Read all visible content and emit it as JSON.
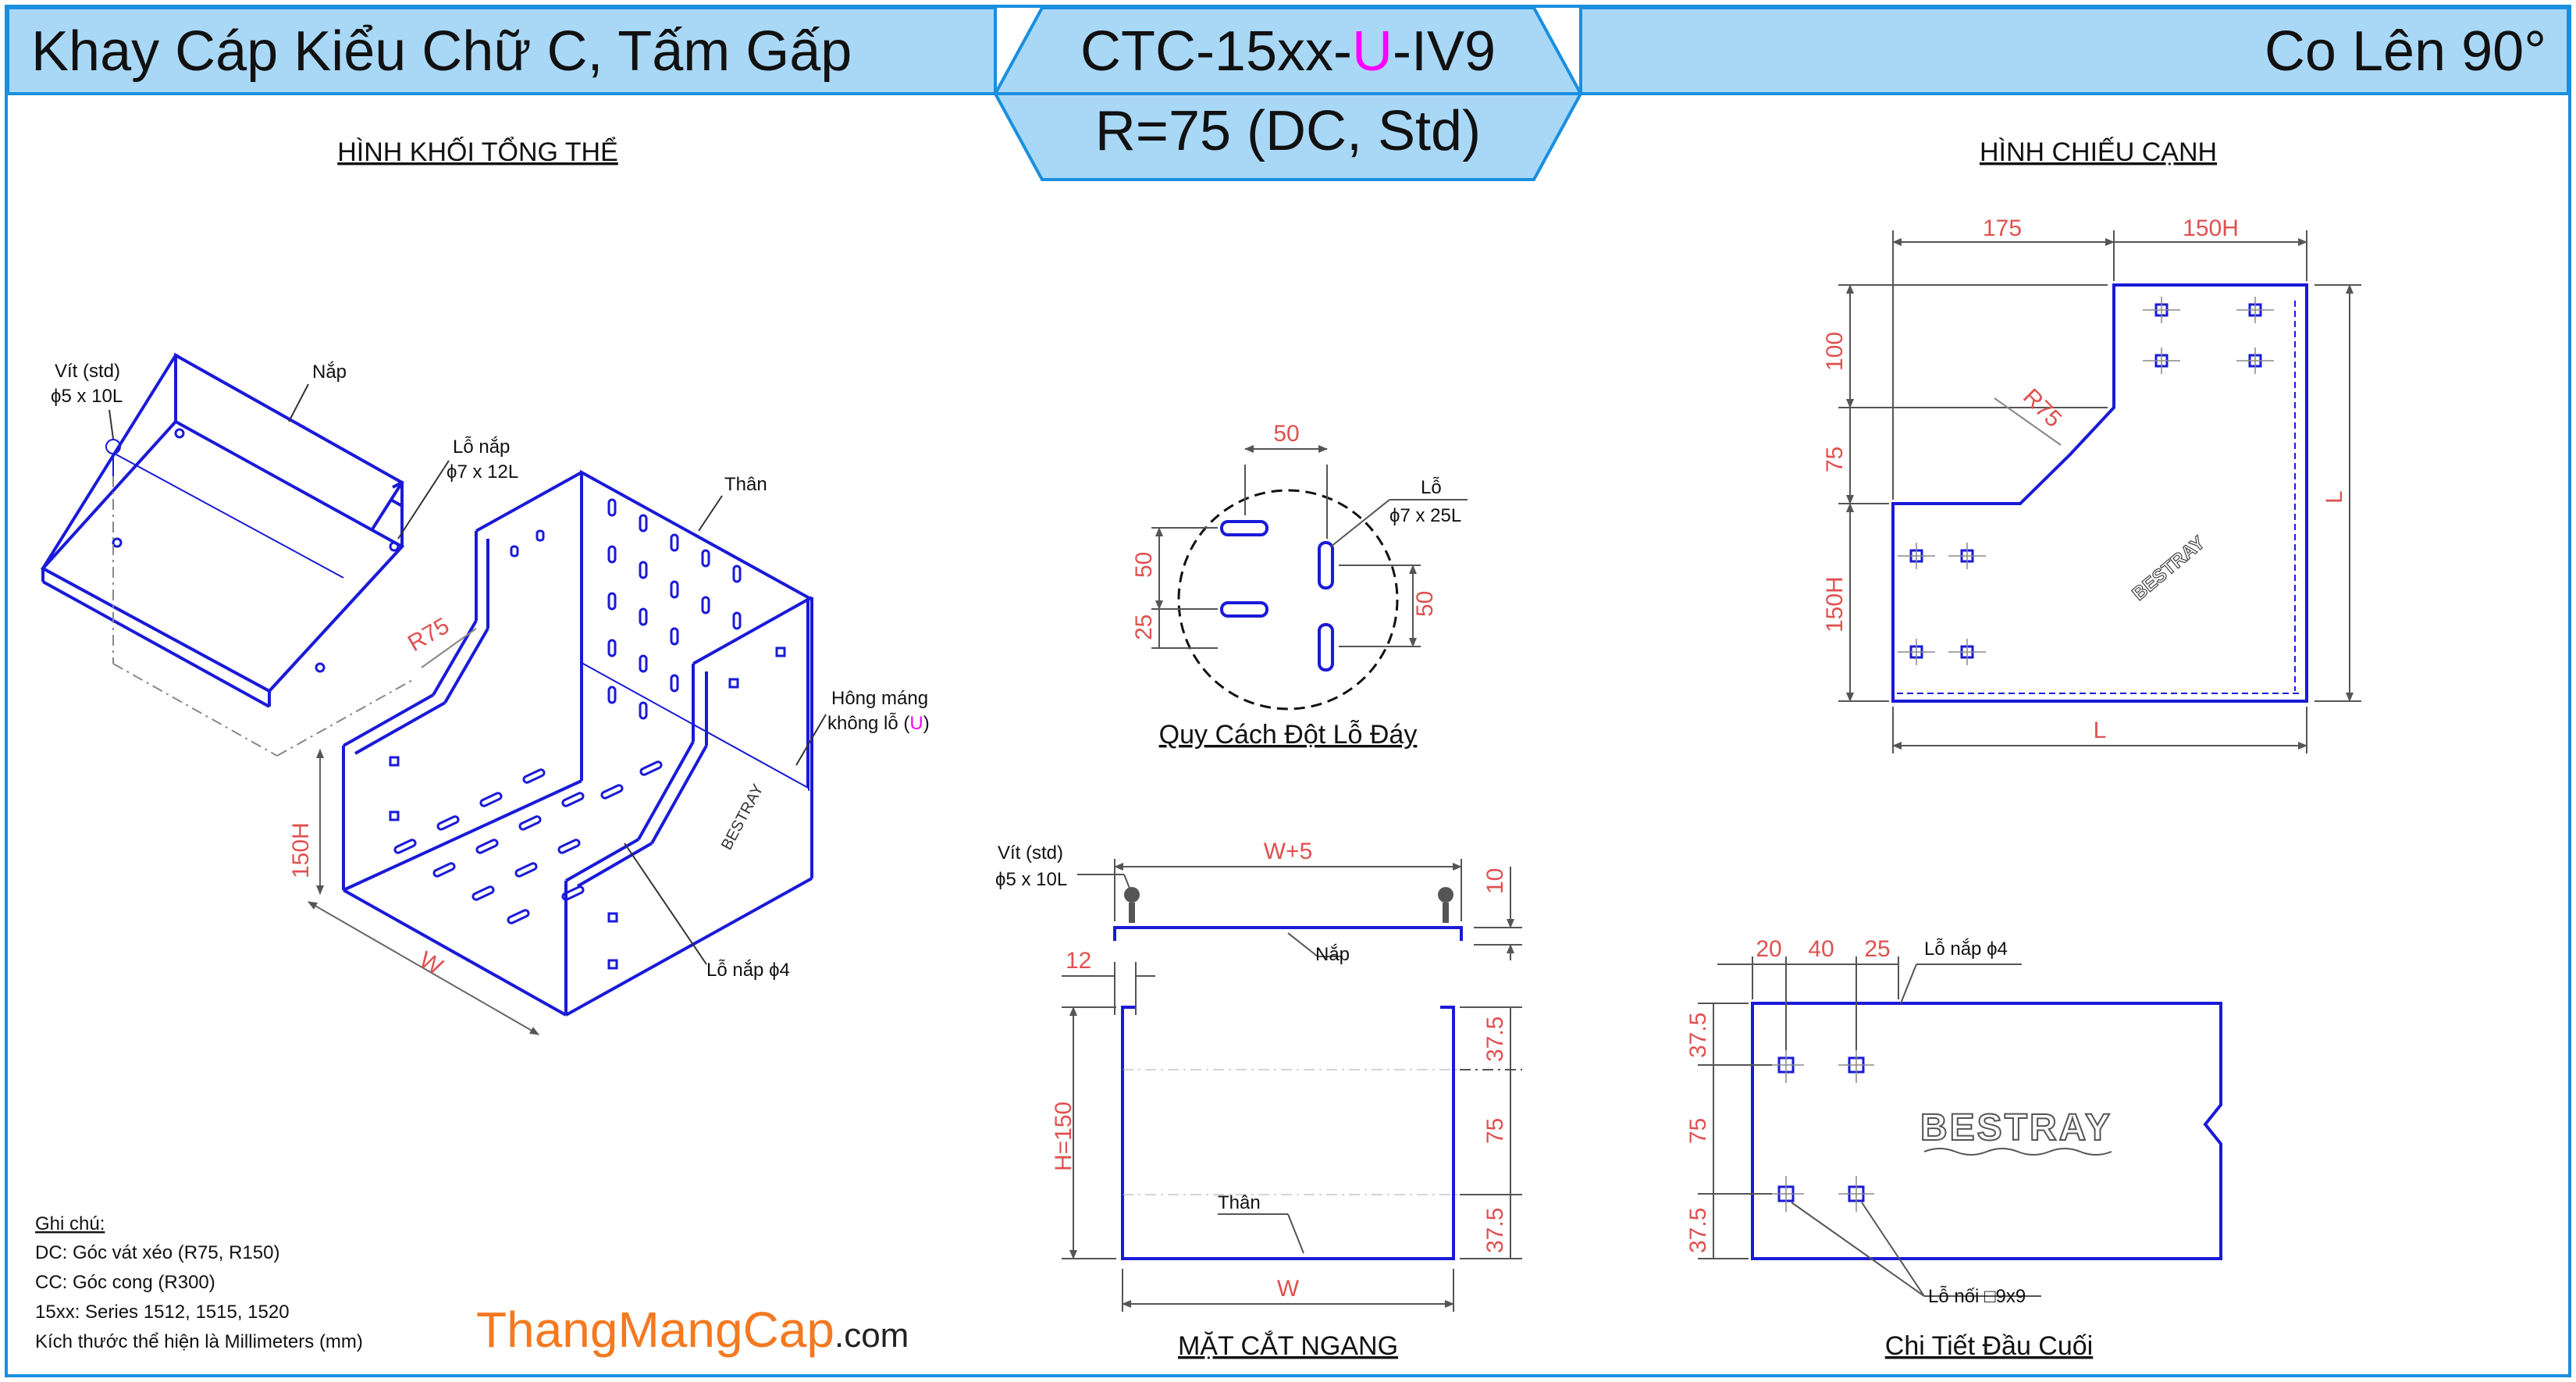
{
  "header": {
    "left_title": "Khay Cáp Kiểu Chữ C, Tấm Gấp",
    "code_prefix": "CTC-15xx-",
    "code_highlight": "U",
    "code_suffix": "-IV9",
    "radius_spec": "R=75 (DC, Std)",
    "right_title": "Co Lên 90°"
  },
  "colors": {
    "banner": "#a9d8f7",
    "border": "#1a8fe0",
    "part_line": "#1a1ad8",
    "dimension": "#e05050",
    "highlight": "#ff00ff",
    "brand": "#f47920"
  },
  "iso_view": {
    "title": "HÌNH KHỐI TỔNG THỂ",
    "screw_label_1": "Vít (std)",
    "screw_label_2": "ϕ5 x 10L",
    "cover_label": "Nắp",
    "cover_hole_1": "Lỗ nắp",
    "cover_hole_2": "ϕ7 x 12L",
    "body_label": "Thân",
    "side_label_1": "Hông máng",
    "side_label_2_prefix": "không lỗ (",
    "side_label_2_highlight": "U",
    "side_label_2_suffix": ")",
    "radius": "R75",
    "height": "150H",
    "width": "W",
    "brand_mark": "BESTRAY",
    "cover_hole_small": "Lỗ nắp ϕ4"
  },
  "hole_pattern": {
    "title": "Quy Cách Đột Lỗ Đáy",
    "dim_top": "50",
    "dim_left_1": "50",
    "dim_left_2": "25",
    "dim_right": "50",
    "hole_label_1": "Lỗ",
    "hole_label_2": "ϕ7 x 25L"
  },
  "section_view": {
    "title": "MẶT CẮT NGANG",
    "screw_label_1": "Vít (std)",
    "screw_label_2": "ϕ5 x 10L",
    "dim_top": "W+5",
    "dim_lip": "12",
    "dim_cover": "10",
    "cover_label": "Nắp",
    "body_label": "Thân",
    "dim_height": "H=150",
    "dim_right": [
      "37.5",
      "75",
      "37.5"
    ],
    "dim_bottom": "W"
  },
  "side_view": {
    "title": "HÌNH CHIẾU CẠNH",
    "dim_top_1": "175",
    "dim_top_2": "150H",
    "dim_left": [
      "100",
      "75",
      "150H"
    ],
    "radius": "R75",
    "dim_right": "L",
    "dim_bottom": "L",
    "brand_mark": "BESTRAY"
  },
  "end_detail": {
    "title": "Chi Tiết Đầu Cuối",
    "dim_top": [
      "20",
      "40",
      "25"
    ],
    "cover_hole": "Lỗ nắp ϕ4",
    "dim_left": [
      "37.5",
      "75",
      "37.5"
    ],
    "brand_mark": "BESTRAY",
    "joint_hole": "Lỗ nối □9x9"
  },
  "notes": {
    "heading": "Ghi chú:",
    "lines": [
      "DC: Góc vát xéo (R75, R150)",
      "CC: Góc cong (R300)",
      "15xx: Series 1512, 1515, 1520",
      "Kích thước thể hiện là Millimeters (mm)"
    ]
  },
  "watermark": {
    "main": "ThangMangCap",
    "suffix": ".com"
  }
}
